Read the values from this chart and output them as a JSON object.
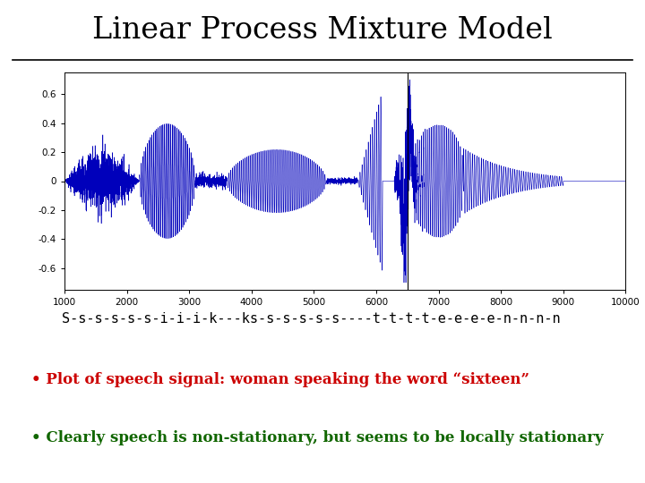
{
  "title": "Linear Process Mixture Model",
  "subtitle_text": "S-s-s-s-s-s-i-i-i-k---ks-s-s-s-s-s----t-t-t-t-e-e-e-e-n-n-n-n",
  "bullet1": "Plot of speech signal: woman speaking the word “sixteen”",
  "bullet2": "Clearly speech is non-stationary, but seems to be locally stationary",
  "bullet1_color": "#cc0000",
  "bullet2_color": "#116600",
  "title_color": "#000000",
  "subtitle_color": "#000000",
  "waveform_color": "#0000bb",
  "background_color": "#ffffff",
  "xlim": [
    1000,
    10000
  ],
  "ylim": [
    -0.75,
    0.75
  ],
  "yticks": [
    -0.6,
    -0.4,
    -0.2,
    0,
    0.2,
    0.4,
    0.6
  ],
  "xticks": [
    1000,
    2000,
    3000,
    4000,
    5000,
    6000,
    7000,
    8000,
    9000,
    10000
  ],
  "vertical_line_x": 6500,
  "seed": 42
}
